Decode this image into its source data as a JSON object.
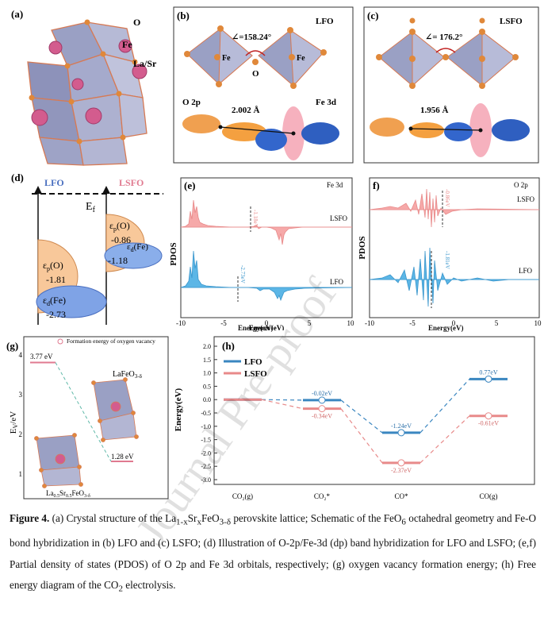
{
  "panel_a": {
    "label": "(a)",
    "atom_labels": [
      "O",
      "Fe",
      "La/Sr"
    ]
  },
  "panel_b": {
    "label": "(b)",
    "title": "LFO",
    "angle": "∠=158.24°",
    "atoms": [
      "Fe",
      "Fe",
      "O"
    ],
    "orbital_left": "O 2p",
    "orbital_right": "Fe 3d",
    "bond": "2.002 Å"
  },
  "panel_c": {
    "label": "(c)",
    "title": "LSFO",
    "angle": "∠= 176.2°",
    "bond": "1.956 Å"
  },
  "panel_d": {
    "label": "(d)",
    "lfo": "LFO",
    "lsfo": "LSFO",
    "ef": "E",
    "ef_sub": "f",
    "lfo_op_label": "ε",
    "lfo_op_sub": "p",
    "lfo_op_tail": "(O)",
    "lfo_op_val": "-1.81",
    "lfo_fe_label": "ε",
    "lfo_fe_sub": "d",
    "lfo_fe_tail": "(Fe)",
    "lfo_fe_val": "-2.73",
    "lsfo_op_label": "ε",
    "lsfo_op_sub": "p",
    "lsfo_op_tail": "(O)",
    "lsfo_op_val": "-0.86",
    "lsfo_fe_label": "ε",
    "lsfo_fe_sub": "d",
    "lsfo_fe_tail": "(Fe)",
    "lsfo_fe_val": "-1.18"
  },
  "panel_e": {
    "label": "(e)",
    "tag": "Fe 3d",
    "ylabel": "PDOS",
    "xlabel": "Energy(eV)",
    "lsfo": "LSFO",
    "lfo": "LFO",
    "c_lsfo": "-1.18eV",
    "c_lfo": "-2.73eV",
    "ticks": [
      "-10",
      "-5",
      "0",
      "5",
      "10"
    ]
  },
  "panel_f": {
    "label": "f)",
    "tag": "O 2p",
    "ylabel": "PDOS",
    "xlabel": "Energy(eV)",
    "lsfo": "LSFO",
    "lfo": "LFO",
    "c_lsfo": "-0.86eV",
    "c_lfo": "-1.81eV",
    "ticks": [
      "-10",
      "-5",
      "0",
      "5",
      "10"
    ]
  },
  "panel_g": {
    "label": "(g)",
    "legend": "Formation energy of oxygen vacancy",
    "ylabel": "E",
    "ylabel_sub": "V",
    "ylabel_tail": "/eV",
    "yticks": [
      "4",
      "3",
      "2",
      "1"
    ],
    "v1": "3.77 eV",
    "v2": "1.28 eV",
    "m1": "LaFeO",
    "m1_sub": "3-δ",
    "m2": "La",
    "m2_sub1": "0.5",
    "m2_mid": "Sr",
    "m2_sub2": "0.5",
    "m2_tail": "FeO",
    "m2_sub3": "3-δ"
  },
  "panel_h": {
    "label": "(h)",
    "ylabel": "Energy(eV)",
    "legend": [
      "LFO",
      "LSFO"
    ],
    "yticks": [
      "2.0",
      "1.5",
      "1.0",
      "0.5",
      "0.0",
      "-0.5",
      "-1.0",
      "-1.5",
      "-2.0",
      "-2.5",
      "-3.0"
    ],
    "xcats": [
      "CO₂(g)",
      "CO₂*",
      "CO*",
      "CO(g)"
    ],
    "lfo_labels": [
      "-0.02eV",
      "-1.24eV",
      "0.77eV"
    ],
    "lsfo_labels": [
      "-0.34eV",
      "-2.37eV",
      "-0.61eV"
    ]
  },
  "chart_data": [
    {
      "type": "line",
      "title": "Free energy diagram of the CO2 electrolysis",
      "xlabel": "",
      "ylabel": "Energy(eV)",
      "ylim": [
        -3.0,
        2.0
      ],
      "categories": [
        "CO2(g)",
        "CO2*",
        "CO*",
        "CO(g)"
      ],
      "series": [
        {
          "name": "LFO",
          "values": [
            0.0,
            -0.02,
            -1.24,
            0.77
          ]
        },
        {
          "name": "LSFO",
          "values": [
            0.0,
            -0.34,
            -2.37,
            -0.61
          ]
        }
      ]
    },
    {
      "type": "line",
      "title": "Formation energy of oxygen vacancy",
      "ylabel": "Ev/eV",
      "ylim": [
        1,
        4
      ],
      "categories": [
        "LaFeO3-δ",
        "La0.5Sr0.5FeO3-δ"
      ],
      "values": [
        3.77,
        1.28
      ]
    }
  ],
  "caption": {
    "fig": "Figure 4.",
    "p1": " (a) Crystal structure of the La",
    "p1_sub": "1-x",
    "p1b": "Sr",
    "p1b_sub": "x",
    "p1c": "FeO",
    "p1c_sub": "3-δ",
    "p2": " perovskite lattice; Schematic of the FeO",
    "p2_sub": "6",
    "p3": " octahedral geometry and Fe-O bond hybridization in (b) LFO and (c) LSFO; (d) Illustration of O-2p/Fe-3d (dp) band hybridization for LFO and LSFO; (e,f) Partial density of states (PDOS) of O 2p and Fe 3d orbitals, respectively; (g) oxygen vacancy formation energy; (h) Free energy diagram of the CO",
    "p3_sub": "2",
    "p4": " electrolysis."
  },
  "watermark": "Journal Pre-proof"
}
